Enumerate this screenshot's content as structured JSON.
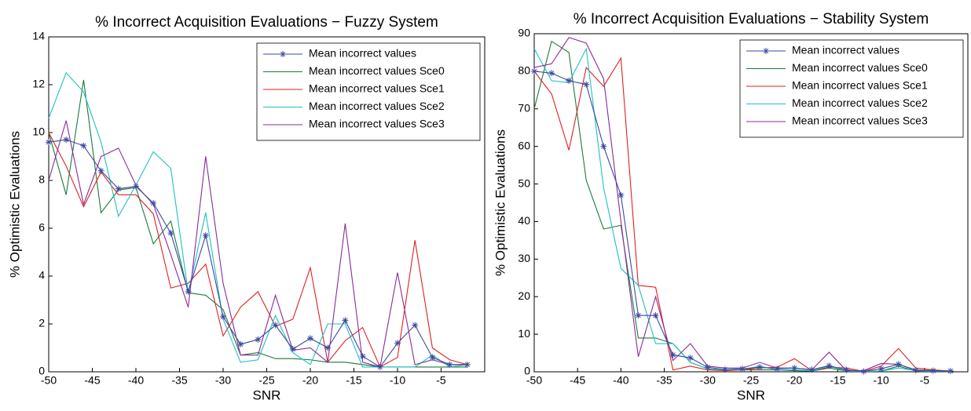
{
  "chart_data": [
    {
      "type": "line",
      "title": "% Incorrect Acquisition Evaluations − Fuzzy System",
      "x_label": "SNR",
      "y_label": "% Optimistic Evaluations",
      "x": [
        -50,
        -48,
        -46,
        -44,
        -42,
        -40,
        -38,
        -36,
        -34,
        -32,
        -30,
        -28,
        -26,
        -24,
        -22,
        -20,
        -18,
        -16,
        -14,
        -12,
        -10,
        -8,
        -6,
        -4,
        -2
      ],
      "series": [
        {
          "name": "Mean incorrect values",
          "color": "#3a4aa0",
          "marker": "star",
          "values": [
            9.6,
            9.7,
            9.45,
            8.4,
            7.65,
            7.75,
            7.05,
            5.8,
            3.35,
            5.7,
            2.3,
            1.15,
            1.35,
            1.95,
            0.95,
            1.4,
            1.0,
            2.15,
            0.65,
            0.2,
            1.2,
            1.95,
            0.6,
            0.3,
            0.3
          ]
        },
        {
          "name": "Mean incorrect values Sce0",
          "color": "#1a7a3a",
          "values": [
            10.0,
            7.4,
            12.2,
            6.65,
            7.6,
            7.7,
            5.35,
            6.3,
            3.3,
            3.2,
            2.6,
            0.7,
            0.8,
            0.55,
            0.55,
            0.5,
            0.4,
            0.4,
            0.3,
            0.2,
            0.2,
            0.2,
            0.2,
            0.2,
            0.2
          ]
        },
        {
          "name": "Mean incorrect values Sce1",
          "color": "#e02020",
          "values": [
            10.0,
            8.6,
            6.9,
            8.35,
            7.4,
            7.4,
            6.6,
            3.5,
            3.7,
            4.5,
            1.5,
            2.7,
            3.35,
            1.9,
            2.2,
            4.35,
            0.4,
            1.3,
            1.85,
            0.2,
            0.6,
            5.5,
            1.0,
            0.5,
            0.3
          ]
        },
        {
          "name": "Mean incorrect values Sce2",
          "color": "#20c0c0",
          "values": [
            10.6,
            12.5,
            11.7,
            9.6,
            6.5,
            7.8,
            9.2,
            8.5,
            3.3,
            6.65,
            2.2,
            0.4,
            0.5,
            2.35,
            0.8,
            0.3,
            2.0,
            2.0,
            0.2,
            0.2,
            0.2,
            0.2,
            0.7,
            0.2,
            0.3
          ]
        },
        {
          "name": "Mean incorrect values Sce3",
          "color": "#8a2a9a",
          "values": [
            8.0,
            10.5,
            7.0,
            9.0,
            9.35,
            7.8,
            7.0,
            4.9,
            2.7,
            9.0,
            3.7,
            0.7,
            0.7,
            3.2,
            0.9,
            1.0,
            0.4,
            6.2,
            0.4,
            0.2,
            4.15,
            0.3,
            0.5,
            0.3,
            0.3
          ]
        }
      ],
      "xlim": [
        -50,
        0
      ],
      "xticks": [
        -50,
        -45,
        -40,
        -35,
        -30,
        -25,
        -20,
        -15,
        -10,
        -5
      ],
      "ylim": [
        0,
        14
      ],
      "yticks": [
        0,
        2,
        4,
        6,
        8,
        10,
        12,
        14
      ],
      "legend": "upper right"
    },
    {
      "type": "line",
      "title": "% Incorrect Acquisition Evaluations − Stability System",
      "x_label": "SNR",
      "y_label": "% Optimistic Evaluations",
      "x": [
        -50,
        -48,
        -46,
        -44,
        -42,
        -40,
        -38,
        -36,
        -34,
        -32,
        -30,
        -28,
        -26,
        -24,
        -22,
        -20,
        -18,
        -16,
        -14,
        -12,
        -10,
        -8,
        -6,
        -4,
        -2
      ],
      "series": [
        {
          "name": "Mean incorrect values",
          "color": "#3a4aa0",
          "marker": "star",
          "values": [
            80,
            79.5,
            77.5,
            76.5,
            60,
            47,
            15,
            15,
            4.5,
            3.7,
            1.2,
            0.6,
            0.8,
            1.2,
            0.8,
            1.0,
            0.6,
            1.6,
            0.5,
            0.1,
            0.8,
            2.0,
            0.4,
            0.3,
            0.2
          ]
        },
        {
          "name": "Mean incorrect values Sce0",
          "color": "#1a7a3a",
          "values": [
            70,
            88,
            85,
            51,
            38,
            39,
            9,
            9,
            7.5,
            2.5,
            0.8,
            0.5,
            0.5,
            0.5,
            0.5,
            0.3,
            0.2,
            1.0,
            0.2,
            0.1,
            0.2,
            1.5,
            0.2,
            0.1,
            0.1
          ]
        },
        {
          "name": "Mean incorrect values Sce1",
          "color": "#e02020",
          "values": [
            80,
            74,
            59,
            81,
            76,
            83.5,
            23,
            22.5,
            0.5,
            1.5,
            0.5,
            0.3,
            0.5,
            1.0,
            1.2,
            3.5,
            0.3,
            1.2,
            1.0,
            0.1,
            1.5,
            6.2,
            1.0,
            0.5,
            0.2
          ]
        },
        {
          "name": "Mean incorrect values Sce2",
          "color": "#20c0c0",
          "values": [
            86,
            77.5,
            77,
            86,
            49,
            27.5,
            23,
            7.5,
            7.5,
            2.5,
            0.8,
            0.5,
            0.6,
            1.5,
            0.5,
            0.5,
            0.3,
            1.5,
            0.2,
            0.1,
            0.2,
            1.0,
            0.3,
            0.2,
            0.2
          ]
        },
        {
          "name": "Mean incorrect values Sce3",
          "color": "#8a2a9a",
          "values": [
            81,
            82,
            89,
            87.5,
            78,
            40,
            4,
            20,
            3,
            7.5,
            1.5,
            1.0,
            1.0,
            2.5,
            1.0,
            1.0,
            0.5,
            5.2,
            0.3,
            0.3,
            2.2,
            2.0,
            0.5,
            0.3,
            0.2
          ]
        }
      ],
      "xlim": [
        -50,
        0
      ],
      "xticks": [
        -50,
        -45,
        -40,
        -35,
        -30,
        -25,
        -20,
        -15,
        -10,
        -5
      ],
      "ylim": [
        0,
        90
      ],
      "yticks": [
        0,
        10,
        20,
        30,
        40,
        50,
        60,
        70,
        80,
        90
      ],
      "legend": "upper right"
    }
  ]
}
